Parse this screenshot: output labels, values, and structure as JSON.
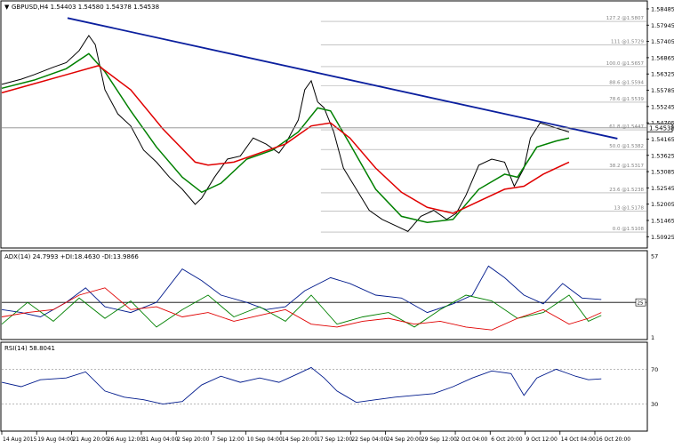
{
  "chart_data": [
    {
      "type": "line",
      "panel": "price",
      "symbol_header": "GBPUSD,H4  1.54403 1.54580 1.54378 1.54538",
      "current_price_label": "1.54538",
      "ylim": [
        1.5058,
        1.5872
      ],
      "y_ticks": [
        "1.58485",
        "1.57945",
        "1.57405",
        "1.56865",
        "1.56325",
        "1.55785",
        "1.55245",
        "1.54705",
        "1.54165",
        "1.53625",
        "1.53085",
        "1.52545",
        "1.52005",
        "1.51465",
        "1.50925"
      ],
      "x_labels": [
        "14 Aug 2015",
        "19 Aug 04:00",
        "21 Aug 20:00",
        "26 Aug 12:00",
        "31 Aug 04:00",
        "2 Sep 20:00",
        "7 Sep 12:00",
        "10 Sep 04:00",
        "14 Sep 20:00",
        "17 Sep 12:00",
        "22 Sep 04:00",
        "24 Sep 20:00",
        "29 Sep 12:00",
        "2 Oct 04:00",
        "6 Oct 20:00",
        "9 Oct 12:00",
        "14 Oct 04:00",
        "16 Oct 20:00"
      ],
      "fib_levels": [
        {
          "label": "127.2 @1.5807",
          "value": 1.5807
        },
        {
          "label": "111 @1.5729",
          "value": 1.5729
        },
        {
          "label": "100.0 @1.5657",
          "value": 1.5657
        },
        {
          "label": "88.6 @1.5594",
          "value": 1.5594
        },
        {
          "label": "78.6 @1.5539",
          "value": 1.5539
        },
        {
          "label": "61.8 @1.5447",
          "value": 1.5447
        },
        {
          "label": "50.0 @1.5382",
          "value": 1.5382
        },
        {
          "label": "38.2 @1.5317",
          "value": 1.5317
        },
        {
          "label": "23.6 @1.5238",
          "value": 1.5238
        },
        {
          "label": "13 @1.5178",
          "value": 1.5178
        },
        {
          "label": "0.0 @1.5108",
          "value": 1.5108
        }
      ],
      "trendline": {
        "from": [
          0.102,
          1.5818
        ],
        "to": [
          0.955,
          1.5418
        ],
        "color": "#0b1f9e"
      },
      "price_series": [
        [
          0.0,
          1.5598
        ],
        [
          0.03,
          1.5615
        ],
        [
          0.05,
          1.563
        ],
        [
          0.08,
          1.5655
        ],
        [
          0.1,
          1.567
        ],
        [
          0.12,
          1.571
        ],
        [
          0.135,
          1.576
        ],
        [
          0.145,
          1.573
        ],
        [
          0.16,
          1.558
        ],
        [
          0.18,
          1.55
        ],
        [
          0.2,
          1.546
        ],
        [
          0.22,
          1.538
        ],
        [
          0.24,
          1.534
        ],
        [
          0.26,
          1.529
        ],
        [
          0.28,
          1.525
        ],
        [
          0.3,
          1.52
        ],
        [
          0.31,
          1.522
        ],
        [
          0.33,
          1.529
        ],
        [
          0.35,
          1.535
        ],
        [
          0.37,
          1.536
        ],
        [
          0.39,
          1.542
        ],
        [
          0.41,
          1.54
        ],
        [
          0.43,
          1.537
        ],
        [
          0.44,
          1.54
        ],
        [
          0.46,
          1.548
        ],
        [
          0.47,
          1.558
        ],
        [
          0.48,
          1.561
        ],
        [
          0.49,
          1.554
        ],
        [
          0.5,
          1.552
        ],
        [
          0.515,
          1.544
        ],
        [
          0.53,
          1.532
        ],
        [
          0.55,
          1.525
        ],
        [
          0.57,
          1.518
        ],
        [
          0.59,
          1.515
        ],
        [
          0.61,
          1.513
        ],
        [
          0.63,
          1.511
        ],
        [
          0.65,
          1.516
        ],
        [
          0.67,
          1.518
        ],
        [
          0.69,
          1.515
        ],
        [
          0.705,
          1.517
        ],
        [
          0.72,
          1.523
        ],
        [
          0.74,
          1.533
        ],
        [
          0.76,
          1.535
        ],
        [
          0.78,
          1.534
        ],
        [
          0.795,
          1.526
        ],
        [
          0.81,
          1.532
        ],
        [
          0.82,
          1.542
        ],
        [
          0.835,
          1.547
        ],
        [
          0.85,
          1.546
        ],
        [
          0.865,
          1.545
        ],
        [
          0.88,
          1.544
        ]
      ],
      "series": [
        {
          "color": "#008000",
          "values": [
            [
              0.0,
              1.5585
            ],
            [
              0.05,
              1.5612
            ],
            [
              0.1,
              1.565
            ],
            [
              0.135,
              1.57
            ],
            [
              0.16,
              1.564
            ],
            [
              0.2,
              1.551
            ],
            [
              0.24,
              1.539
            ],
            [
              0.28,
              1.529
            ],
            [
              0.31,
              1.524
            ],
            [
              0.34,
              1.527
            ],
            [
              0.38,
              1.535
            ],
            [
              0.42,
              1.538
            ],
            [
              0.46,
              1.544
            ],
            [
              0.49,
              1.552
            ],
            [
              0.51,
              1.551
            ],
            [
              0.54,
              1.54
            ],
            [
              0.58,
              1.525
            ],
            [
              0.62,
              1.516
            ],
            [
              0.66,
              1.514
            ],
            [
              0.7,
              1.515
            ],
            [
              0.74,
              1.525
            ],
            [
              0.78,
              1.53
            ],
            [
              0.8,
              1.529
            ],
            [
              0.83,
              1.539
            ],
            [
              0.86,
              1.541
            ],
            [
              0.88,
              1.542
            ]
          ]
        },
        {
          "color": "#e00000",
          "values": [
            [
              0.0,
              1.557
            ],
            [
              0.05,
              1.56
            ],
            [
              0.1,
              1.563
            ],
            [
              0.15,
              1.566
            ],
            [
              0.2,
              1.558
            ],
            [
              0.25,
              1.545
            ],
            [
              0.3,
              1.534
            ],
            [
              0.32,
              1.533
            ],
            [
              0.36,
              1.534
            ],
            [
              0.4,
              1.537
            ],
            [
              0.44,
              1.54
            ],
            [
              0.48,
              1.546
            ],
            [
              0.51,
              1.547
            ],
            [
              0.54,
              1.542
            ],
            [
              0.58,
              1.532
            ],
            [
              0.62,
              1.524
            ],
            [
              0.66,
              1.519
            ],
            [
              0.7,
              1.517
            ],
            [
              0.74,
              1.521
            ],
            [
              0.78,
              1.525
            ],
            [
              0.81,
              1.526
            ],
            [
              0.84,
              1.53
            ],
            [
              0.88,
              1.534
            ]
          ]
        }
      ]
    },
    {
      "type": "line",
      "panel": "adx",
      "header": "ADX(14) 24.7993 +DI:18.4630 -DI:13.9866",
      "ylim": [
        0,
        60
      ],
      "y_ticks": [
        "57",
        "1"
      ],
      "level_label": "25",
      "level_value": 25,
      "series": [
        {
          "color": "#001a8c",
          "values": [
            [
              0.0,
              20
            ],
            [
              0.03,
              18
            ],
            [
              0.06,
              15
            ],
            [
              0.1,
              25
            ],
            [
              0.13,
              35
            ],
            [
              0.16,
              22
            ],
            [
              0.2,
              18
            ],
            [
              0.24,
              25
            ],
            [
              0.28,
              48
            ],
            [
              0.31,
              40
            ],
            [
              0.34,
              30
            ],
            [
              0.38,
              25
            ],
            [
              0.41,
              20
            ],
            [
              0.44,
              22
            ],
            [
              0.47,
              33
            ],
            [
              0.51,
              42
            ],
            [
              0.54,
              38
            ],
            [
              0.58,
              30
            ],
            [
              0.62,
              28
            ],
            [
              0.66,
              18
            ],
            [
              0.7,
              24
            ],
            [
              0.73,
              30
            ],
            [
              0.755,
              50
            ],
            [
              0.78,
              42
            ],
            [
              0.81,
              30
            ],
            [
              0.84,
              24
            ],
            [
              0.87,
              38
            ],
            [
              0.9,
              28
            ],
            [
              0.93,
              27
            ]
          ]
        },
        {
          "color": "#008000",
          "values": [
            [
              0.0,
              10
            ],
            [
              0.04,
              25
            ],
            [
              0.08,
              12
            ],
            [
              0.12,
              28
            ],
            [
              0.16,
              14
            ],
            [
              0.2,
              26
            ],
            [
              0.24,
              8
            ],
            [
              0.28,
              20
            ],
            [
              0.32,
              30
            ],
            [
              0.36,
              15
            ],
            [
              0.4,
              22
            ],
            [
              0.44,
              12
            ],
            [
              0.48,
              30
            ],
            [
              0.52,
              10
            ],
            [
              0.56,
              15
            ],
            [
              0.6,
              18
            ],
            [
              0.64,
              8
            ],
            [
              0.68,
              20
            ],
            [
              0.72,
              30
            ],
            [
              0.76,
              26
            ],
            [
              0.8,
              14
            ],
            [
              0.84,
              18
            ],
            [
              0.88,
              30
            ],
            [
              0.91,
              12
            ],
            [
              0.93,
              16
            ]
          ]
        },
        {
          "color": "#e00000",
          "values": [
            [
              0.0,
              15
            ],
            [
              0.04,
              18
            ],
            [
              0.08,
              20
            ],
            [
              0.12,
              30
            ],
            [
              0.16,
              35
            ],
            [
              0.2,
              20
            ],
            [
              0.24,
              22
            ],
            [
              0.28,
              15
            ],
            [
              0.32,
              18
            ],
            [
              0.36,
              12
            ],
            [
              0.4,
              16
            ],
            [
              0.44,
              20
            ],
            [
              0.48,
              10
            ],
            [
              0.52,
              8
            ],
            [
              0.56,
              12
            ],
            [
              0.6,
              14
            ],
            [
              0.64,
              10
            ],
            [
              0.68,
              12
            ],
            [
              0.72,
              8
            ],
            [
              0.76,
              6
            ],
            [
              0.8,
              14
            ],
            [
              0.84,
              20
            ],
            [
              0.88,
              10
            ],
            [
              0.91,
              14
            ],
            [
              0.93,
              18
            ]
          ]
        }
      ]
    },
    {
      "type": "line",
      "panel": "rsi",
      "header": "RSI(14) 58.8041",
      "ylim": [
        0,
        100
      ],
      "y_ticks": [
        "70",
        "30"
      ],
      "levels": [
        70,
        30
      ],
      "series": [
        {
          "color": "#001a8c",
          "values": [
            [
              0.0,
              55
            ],
            [
              0.03,
              50
            ],
            [
              0.06,
              58
            ],
            [
              0.1,
              60
            ],
            [
              0.13,
              67
            ],
            [
              0.16,
              45
            ],
            [
              0.19,
              38
            ],
            [
              0.22,
              35
            ],
            [
              0.25,
              30
            ],
            [
              0.28,
              33
            ],
            [
              0.31,
              52
            ],
            [
              0.34,
              62
            ],
            [
              0.37,
              55
            ],
            [
              0.4,
              60
            ],
            [
              0.43,
              55
            ],
            [
              0.46,
              65
            ],
            [
              0.48,
              72
            ],
            [
              0.5,
              60
            ],
            [
              0.52,
              45
            ],
            [
              0.55,
              32
            ],
            [
              0.58,
              35
            ],
            [
              0.61,
              38
            ],
            [
              0.64,
              40
            ],
            [
              0.67,
              42
            ],
            [
              0.7,
              50
            ],
            [
              0.73,
              60
            ],
            [
              0.76,
              68
            ],
            [
              0.79,
              65
            ],
            [
              0.81,
              40
            ],
            [
              0.83,
              60
            ],
            [
              0.86,
              70
            ],
            [
              0.89,
              62
            ],
            [
              0.91,
              58
            ],
            [
              0.93,
              59
            ]
          ]
        }
      ]
    }
  ]
}
